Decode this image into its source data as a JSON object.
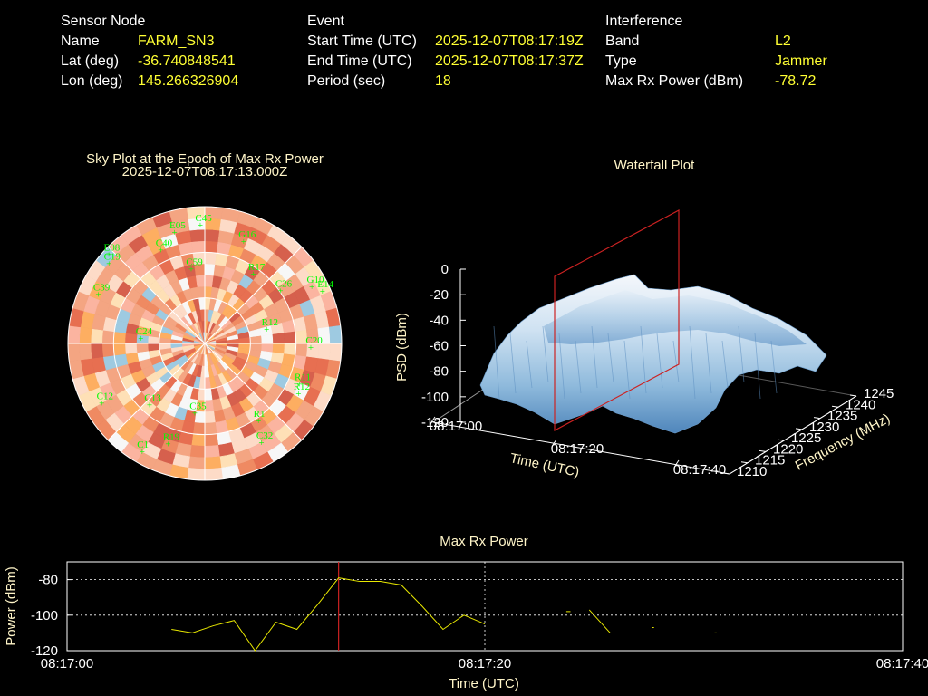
{
  "sensor": {
    "title": "Sensor Node",
    "rows": [
      {
        "label": "Name",
        "value": "FARM_SN3"
      },
      {
        "label": "Lat (deg)",
        "value": "-36.740848541"
      },
      {
        "label": "Lon (deg)",
        "value": "145.266326904"
      }
    ]
  },
  "event": {
    "title": "Event",
    "rows": [
      {
        "label": "Start Time (UTC)",
        "value": "2025-12-07T08:17:19Z"
      },
      {
        "label": "End Time (UTC)",
        "value": "2025-12-07T08:17:37Z"
      },
      {
        "label": "Period (sec)",
        "value": "18"
      }
    ]
  },
  "interference": {
    "title": "Interference",
    "rows": [
      {
        "label": "Band",
        "value": "L2"
      },
      {
        "label": "Type",
        "value": "Jammer"
      },
      {
        "label": "Max Rx Power (dBm)",
        "value": "-78.72"
      }
    ]
  },
  "colors": {
    "info_value": "#ffff33",
    "title_text": "#fff5c8",
    "satellite": "#00ff00",
    "marker_line": "#cc2222",
    "power_line": "#e8e800"
  },
  "chart_data": [
    {
      "type": "heatmap",
      "title": "Sky Plot at the Epoch of Max Rx Power",
      "subtitle": "2025-12-07T08:17:13.000Z",
      "satellites": [
        {
          "id": "G16",
          "az": 21,
          "el": 18
        },
        {
          "id": "R17",
          "az": 35,
          "el": 34
        },
        {
          "id": "C26",
          "az": 55,
          "el": 29
        },
        {
          "id": "G10",
          "az": 62,
          "el": 10
        },
        {
          "id": "E14",
          "az": 66,
          "el": 5
        },
        {
          "id": "R12",
          "az": 77,
          "el": 48
        },
        {
          "id": "C20",
          "az": 92,
          "el": 20
        },
        {
          "id": "R11",
          "az": 113,
          "el": 22
        },
        {
          "id": "R12",
          "az": 118,
          "el": 20
        },
        {
          "id": "R1",
          "az": 145,
          "el": 28
        },
        {
          "id": "C32",
          "az": 150,
          "el": 15
        },
        {
          "id": "C35",
          "az": 188,
          "el": 44
        },
        {
          "id": "R19",
          "az": 200,
          "el": 20
        },
        {
          "id": "C1",
          "az": 210,
          "el": 8
        },
        {
          "id": "C13",
          "az": 222,
          "el": 36
        },
        {
          "id": "C12",
          "az": 240,
          "el": 12
        },
        {
          "id": "C24",
          "az": 275,
          "el": 48
        },
        {
          "id": "C39",
          "az": 295,
          "el": 13
        },
        {
          "id": "C19",
          "az": 310,
          "el": 8
        },
        {
          "id": "E08",
          "az": 313,
          "el": 4
        },
        {
          "id": "C40",
          "az": 335,
          "el": 22
        },
        {
          "id": "E05",
          "az": 345,
          "el": 14
        },
        {
          "id": "C59",
          "az": 350,
          "el": 40
        },
        {
          "id": "C45",
          "az": 358,
          "el": 12
        }
      ]
    },
    {
      "type": "area",
      "title": "Waterfall Plot",
      "zlabel": "PSD (dBm)",
      "xlabel": "Time (UTC)",
      "ylabel": "Frequency (MHz)",
      "z_ticks": [
        0,
        -20,
        -40,
        -60,
        -80,
        -100,
        -120
      ],
      "time_ticks": [
        "08:17:00",
        "08:17:20",
        "08:17:40"
      ],
      "freq_ticks": [
        1210,
        1215,
        1220,
        1225,
        1230,
        1235,
        1240,
        1245
      ]
    },
    {
      "type": "line",
      "title": "Max Rx Power",
      "xlabel": "Time (UTC)",
      "ylabel": "Power (dBm)",
      "x_ticks": [
        "08:17:00",
        "08:17:20",
        "08:17:40"
      ],
      "y_ticks": [
        -80,
        -100,
        -120
      ],
      "ylim": [
        -120,
        -70
      ],
      "xlim": [
        0,
        40
      ],
      "marker_time": 13,
      "grid": true,
      "series": [
        {
          "x": [
            5,
            6,
            7,
            8,
            9,
            10,
            11,
            12,
            13,
            14,
            15,
            16,
            17,
            18,
            19,
            20
          ],
          "y": [
            -108,
            -110,
            -106,
            -103,
            -120,
            -104,
            -108,
            -94,
            -79,
            -81,
            -81,
            -83,
            -95,
            -108,
            -100,
            -105
          ]
        },
        {
          "x": [
            23.9,
            24.1
          ],
          "y": [
            -98,
            -98
          ]
        },
        {
          "x": [
            25,
            26
          ],
          "y": [
            -97,
            -110
          ]
        },
        {
          "x": [
            28,
            28.1
          ],
          "y": [
            -107,
            -107
          ]
        },
        {
          "x": [
            31,
            31.1
          ],
          "y": [
            -110,
            -110
          ]
        }
      ]
    }
  ]
}
